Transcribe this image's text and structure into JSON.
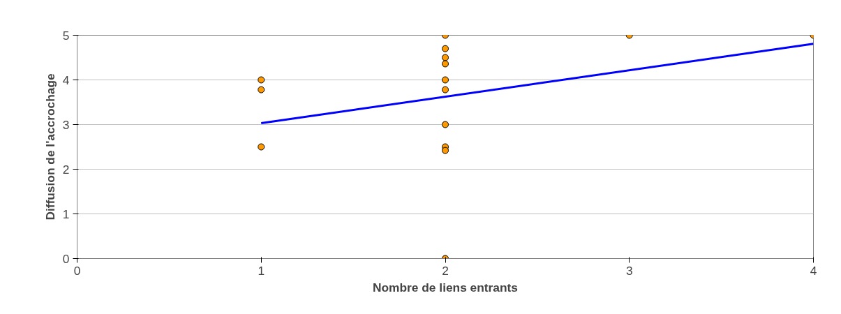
{
  "chart_data": {
    "type": "scatter",
    "xlabel": "Nombre de liens entrants",
    "ylabel": "Diffusion de l'accrochage",
    "xlim": [
      0,
      4
    ],
    "xticks": [
      0,
      1,
      2,
      3,
      4
    ],
    "ylim": [
      0,
      5
    ],
    "yticks": [
      0,
      1,
      2,
      3,
      4,
      5
    ],
    "grid": "y",
    "marker": "circle",
    "series": [
      {
        "color": "#ff9900",
        "x": [
          1,
          1,
          1,
          2,
          2,
          2,
          2,
          2,
          2,
          2,
          2,
          2,
          2,
          3,
          4
        ],
        "values": [
          4,
          3.78,
          2.5,
          5,
          4.7,
          4.5,
          4.36,
          4,
          3.78,
          3,
          2.5,
          2.42,
          0,
          5,
          5
        ]
      },
      {
        "type": "line",
        "color": "#0000ff",
        "x": [
          1,
          4
        ],
        "values": [
          3.03,
          4.81
        ],
        "marker": "none"
      }
    ]
  }
}
